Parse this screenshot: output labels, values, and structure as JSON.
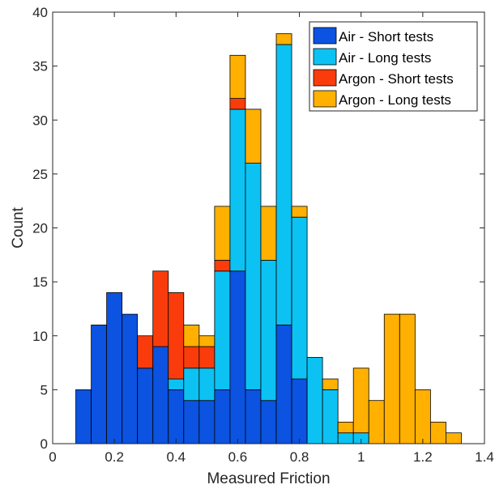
{
  "chart_data": {
    "type": "bar",
    "stacked": true,
    "title": "",
    "xlabel": "Measured Friction",
    "ylabel": "Count",
    "xlim": [
      0,
      1.4
    ],
    "ylim": [
      0,
      40
    ],
    "xticks": [
      0,
      0.2,
      0.4,
      0.6,
      0.8,
      1,
      1.2,
      1.4
    ],
    "xtick_labels": [
      "0",
      "0.2",
      "0.4",
      "0.6",
      "0.8",
      "1",
      "1.2",
      "1.4"
    ],
    "yticks": [
      0,
      5,
      10,
      15,
      20,
      25,
      30,
      35,
      40
    ],
    "ytick_labels": [
      "0",
      "5",
      "10",
      "15",
      "20",
      "25",
      "30",
      "35",
      "40"
    ],
    "bin_width": 0.05,
    "bin_centers": [
      0.1,
      0.15,
      0.2,
      0.25,
      0.3,
      0.35,
      0.4,
      0.45,
      0.5,
      0.55,
      0.6,
      0.65,
      0.7,
      0.75,
      0.8,
      0.85,
      0.9,
      0.95,
      1.0,
      1.05,
      1.1,
      1.15,
      1.2,
      1.25,
      1.3
    ],
    "series": [
      {
        "name": "Air - Short tests",
        "color": "#0b53e0",
        "values": [
          5,
          11,
          14,
          12,
          7,
          9,
          5,
          4,
          4,
          5,
          16,
          5,
          4,
          11,
          6,
          0,
          0,
          0,
          0,
          0,
          0,
          0,
          0,
          0,
          0
        ]
      },
      {
        "name": "Air - Long tests",
        "color": "#0cc2f2",
        "values": [
          0,
          0,
          0,
          0,
          0,
          0,
          1,
          3,
          3,
          11,
          15,
          21,
          13,
          26,
          15,
          8,
          5,
          1,
          1,
          0,
          0,
          0,
          0,
          0,
          0
        ]
      },
      {
        "name": "Argon - Short tests",
        "color": "#fa3c0c",
        "values": [
          0,
          0,
          0,
          0,
          3,
          7,
          8,
          2,
          2,
          1,
          1,
          0,
          0,
          0,
          0,
          0,
          0,
          0,
          0,
          0,
          0,
          0,
          0,
          0,
          0
        ]
      },
      {
        "name": "Argon - Long tests",
        "color": "#ffb000",
        "values": [
          0,
          0,
          0,
          0,
          0,
          0,
          0,
          2,
          1,
          5,
          4,
          5,
          5,
          1,
          1,
          0,
          1,
          1,
          6,
          4,
          12,
          12,
          5,
          2,
          1
        ]
      }
    ],
    "grid": false,
    "legend_position": "top-right"
  }
}
